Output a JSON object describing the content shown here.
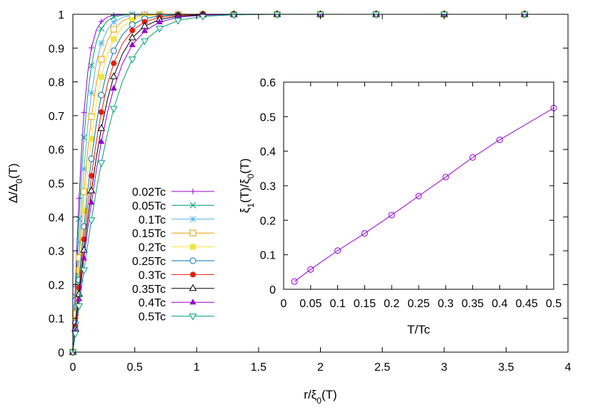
{
  "chart_data": [
    {
      "id": "main",
      "type": "line",
      "xlabel": "r/ξ0(T)",
      "ylabel": "Δ/Δ0(T)",
      "xlim": [
        0,
        4
      ],
      "ylim": [
        0,
        1
      ],
      "xticks": [
        0,
        0.5,
        1,
        1.5,
        2,
        2.5,
        3,
        3.5,
        4
      ],
      "xtick_labels": [
        "0",
        "0.5",
        "1",
        "1.5",
        "2",
        "2.5",
        "3",
        "3.5",
        "4"
      ],
      "yticks": [
        0,
        0.1,
        0.2,
        0.3,
        0.4,
        0.5,
        0.6,
        0.7,
        0.8,
        0.9,
        1
      ],
      "ytick_labels": [
        "0",
        "0.1",
        "0.2",
        "0.3",
        "0.4",
        "0.5",
        "0.6",
        "0.7",
        "0.8",
        "0.9",
        "1"
      ],
      "grid": false,
      "legend_position": "middle-left",
      "series": [
        {
          "name": "0.02Tc",
          "T": 0.02,
          "marker": "plus",
          "color": "#9400D3",
          "ratio": 0.0224
        },
        {
          "name": "0.05Tc",
          "T": 0.05,
          "marker": "cross",
          "color": "#009E73",
          "ratio": 0.0575
        },
        {
          "name": "0.1Tc",
          "T": 0.1,
          "marker": "star",
          "color": "#56B4E9",
          "ratio": 0.112
        },
        {
          "name": "0.15Tc",
          "T": 0.15,
          "marker": "square-open",
          "color": "#E69F00",
          "ratio": 0.162
        },
        {
          "name": "0.2Tc",
          "T": 0.2,
          "marker": "square-filled",
          "color": "#F0E442",
          "ratio": 0.215
        },
        {
          "name": "0.25Tc",
          "T": 0.25,
          "marker": "circle-open",
          "color": "#0072B2",
          "ratio": 0.27
        },
        {
          "name": "0.3Tc",
          "T": 0.3,
          "marker": "circle-filled",
          "color": "#E51E10",
          "ratio": 0.325
        },
        {
          "name": "0.35Tc",
          "T": 0.35,
          "marker": "triangle-open",
          "color": "#000000",
          "ratio": 0.382
        },
        {
          "name": "0.4Tc",
          "T": 0.4,
          "marker": "triangle-filled",
          "color": "#9400D3",
          "ratio": 0.433
        },
        {
          "name": "0.5Tc",
          "T": 0.5,
          "marker": "triangle-down-open",
          "color": "#009E73",
          "ratio": 0.525
        }
      ]
    },
    {
      "id": "inset",
      "type": "line",
      "xlabel": "T/Tc",
      "ylabel": "ξ1(T)/ξ0(T)",
      "xlim": [
        0,
        0.5
      ],
      "ylim": [
        0,
        0.6
      ],
      "xticks": [
        0,
        0.05,
        0.1,
        0.15,
        0.2,
        0.25,
        0.3,
        0.35,
        0.4,
        0.45,
        0.5
      ],
      "xtick_labels": [
        "0",
        "0.05",
        "0.1",
        "0.15",
        "0.2",
        "0.25",
        "0.3",
        "0.35",
        "0.4",
        "0.45",
        "0.5"
      ],
      "yticks": [
        0,
        0.1,
        0.2,
        0.3,
        0.4,
        0.5,
        0.6
      ],
      "ytick_labels": [
        "0",
        "0.1",
        "0.2",
        "0.3",
        "0.4",
        "0.5",
        "0.6"
      ],
      "marker": "circle-open",
      "color": "#9400D3",
      "x": [
        0.02,
        0.05,
        0.1,
        0.15,
        0.2,
        0.25,
        0.3,
        0.35,
        0.4,
        0.5
      ],
      "y": [
        0.0224,
        0.0575,
        0.112,
        0.162,
        0.215,
        0.27,
        0.325,
        0.382,
        0.433,
        0.525
      ]
    }
  ]
}
